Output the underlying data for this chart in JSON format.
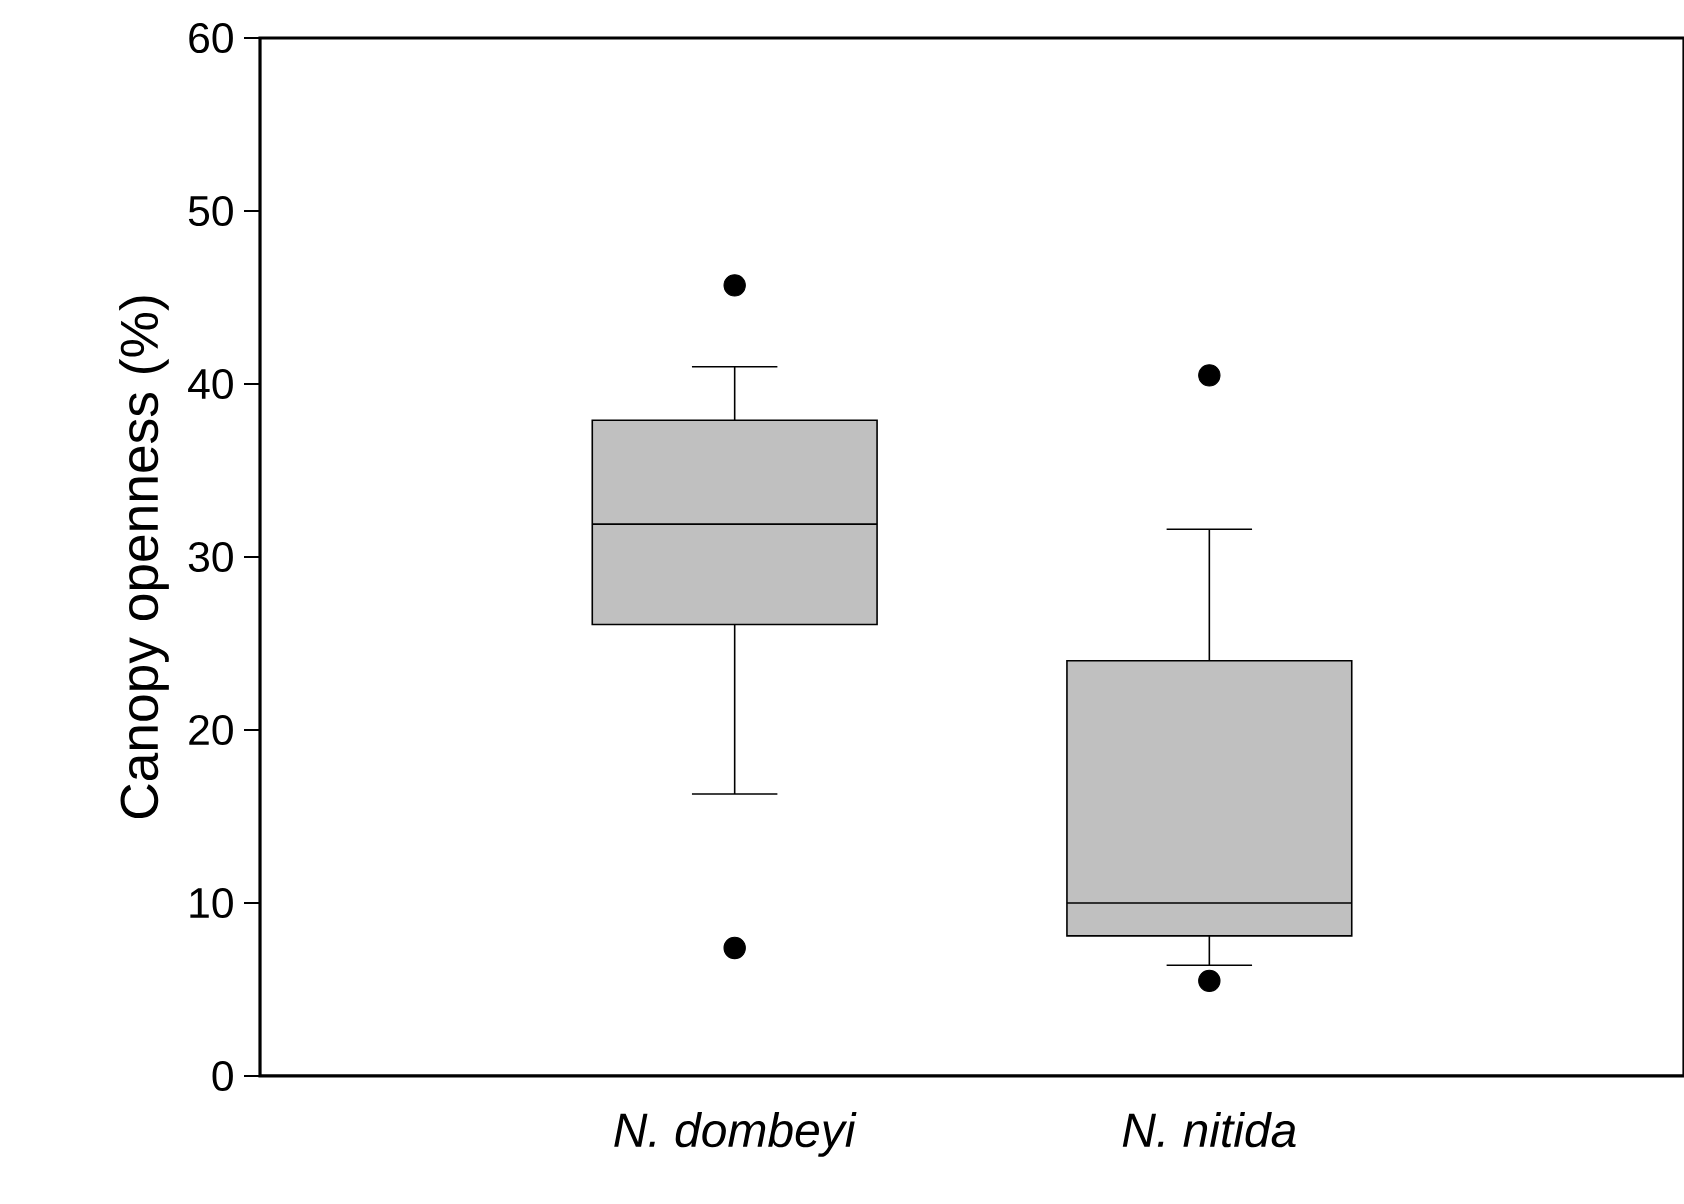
{
  "chart_data": {
    "type": "box",
    "ylabel": "Canopy openness (%)",
    "categories": [
      "*N. dombeyi*",
      "*N. nitida*"
    ],
    "color": "#c0c0c0",
    "boxes": [
      {
        "low": 16.3,
        "q1": 26.1,
        "median": 31.9,
        "q3": 37.9,
        "high": 41.0,
        "outliers": [
          45.7,
          7.4
        ]
      },
      {
        "low": 6.4,
        "q1": 8.1,
        "median": 10.0,
        "q3": 24.0,
        "high": 31.6,
        "outliers": [
          40.5,
          5.5
        ]
      }
    ],
    "ylim": [
      0,
      60
    ],
    "yticks": [
      0,
      10,
      20,
      30,
      40,
      50,
      60
    ],
    "grid": false
  }
}
